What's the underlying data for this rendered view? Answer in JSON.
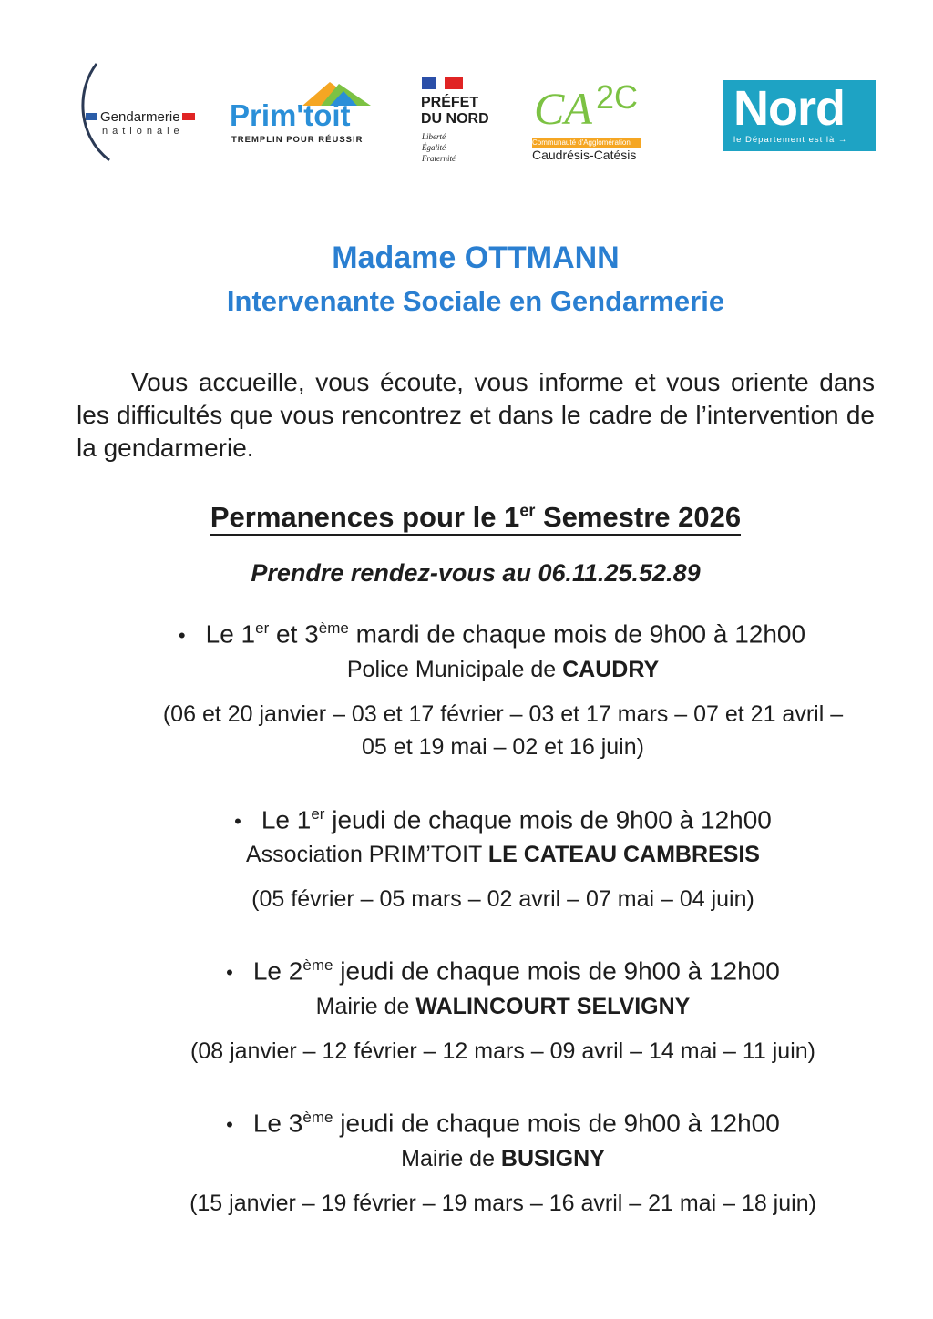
{
  "logos": {
    "gendarmerie": {
      "name": "Gendarmerie",
      "sub": "nationale"
    },
    "primtoit": {
      "name": "Prim'toit",
      "tagline": "TREMPLIN POUR RÉUSSIR"
    },
    "prefet": {
      "line1": "PRÉFET",
      "line2": "DU NORD",
      "motto": [
        "Liberté",
        "Égalité",
        "Fraternité"
      ]
    },
    "ca2c": {
      "mark": "CA2C",
      "band": "Communauté d'Agglomération",
      "name": "Caudrésis-Catésis"
    },
    "nord": {
      "name": "Nord",
      "tagline": "le Département est là →"
    }
  },
  "header": {
    "name": "Madame OTTMANN",
    "role": "Intervenante Sociale en Gendarmerie"
  },
  "intro": "Vous accueille, vous écoute, vous informe et vous oriente dans les difficultés que vous rencontrez et dans le cadre de l’intervention de la gendarmerie.",
  "permanences": {
    "title_pre": "Permanences pour le 1",
    "title_sup": "er",
    "title_post": " Semestre 2026",
    "rdv": "Prendre rendez-vous au 06.11.25.52.89"
  },
  "schedule": [
    {
      "p1": "Le 1",
      "s1": "er",
      "p2": " et 3",
      "s2": "ème",
      "p3": " mardi de chaque mois de 9h00 à 12h00",
      "place_pre": "Police Municipale de ",
      "place_bold": "CAUDRY",
      "dates1": "(06 et 20 janvier – 03 et 17 février – 03 et 17 mars – 07 et 21 avril –",
      "dates2": "05 et 19 mai – 02 et 16 juin)"
    },
    {
      "p1": "Le 1",
      "s1": "er",
      "p2": " jeudi de chaque mois de 9h00 à 12h00",
      "place_pre": "Association PRIM’TOIT ",
      "place_bold": "LE CATEAU CAMBRESIS",
      "dates1": "(05 février – 05 mars – 02 avril – 07 mai – 04 juin)"
    },
    {
      "p1": "Le 2",
      "s1": "ème",
      "p2": " jeudi de chaque mois de 9h00 à 12h00",
      "place_pre": "Mairie de ",
      "place_bold": "WALINCOURT SELVIGNY",
      "dates1": "(08 janvier – 12 février – 12 mars – 09 avril – 14 mai – 11 juin)"
    },
    {
      "p1": "Le 3",
      "s1": "ème",
      "p2": " jeudi de chaque mois de 9h00 à 12h00",
      "place_pre": "Mairie de ",
      "place_bold": "BUSIGNY",
      "dates1": "(15 janvier – 19 février – 19 mars – 16 avril – 21 mai – 18 juin)"
    }
  ],
  "colors": {
    "title": "#2a7fd1",
    "nord": "#1ea3c4",
    "primtoit": "#2a8fd8",
    "ca2c_green": "#7cc243",
    "ca2c_orange": "#f5a623"
  }
}
